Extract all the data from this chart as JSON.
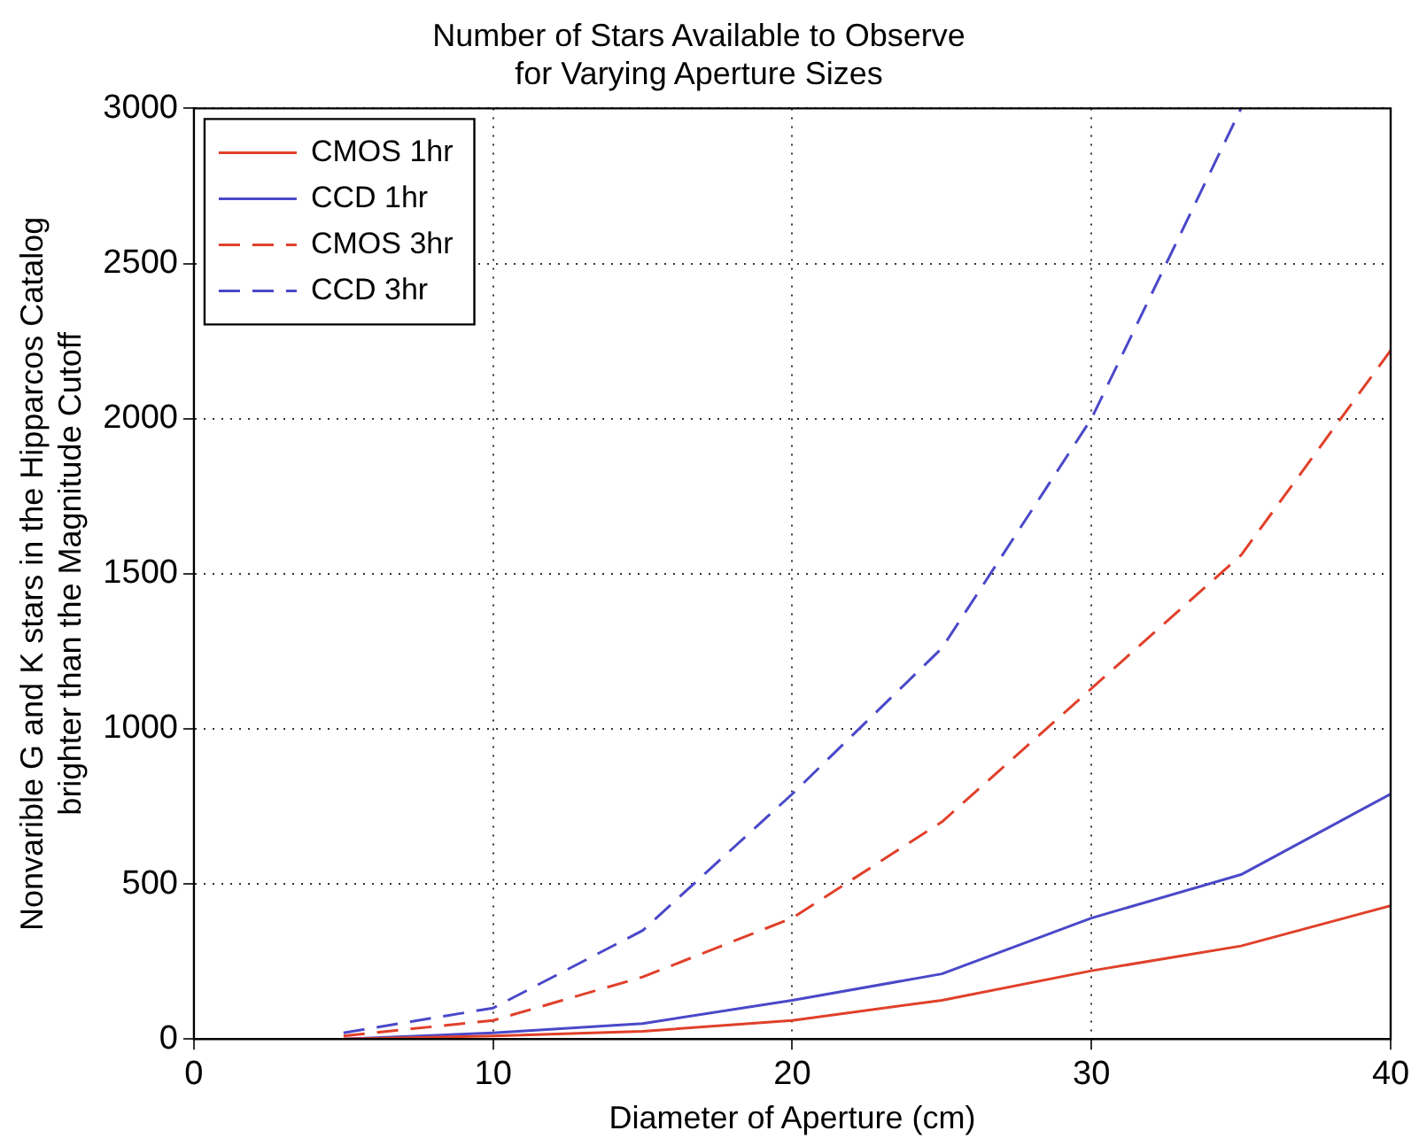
{
  "chart_data": {
    "type": "line",
    "title": "Number of Stars Available to Observe\nfor Varying Aperture Sizes",
    "xlabel": "Diameter of Aperture (cm)",
    "ylabel": "Nonvarible G and K stars in the Hipparcos Catalog\nbrighter than the Magnitude Cutoff",
    "x": [
      5,
      10,
      15,
      20,
      25,
      30,
      35,
      40
    ],
    "series": [
      {
        "name": "CMOS 1hr",
        "color": "#e0402a",
        "line_style": "solid",
        "values": [
          0,
          10,
          25,
          60,
          125,
          220,
          300,
          430
        ]
      },
      {
        "name": "CCD 1hr",
        "color": "#4a48c8",
        "line_style": "solid",
        "values": [
          0,
          20,
          50,
          125,
          210,
          390,
          530,
          790
        ]
      },
      {
        "name": "CMOS 3hr",
        "color": "#e0402a",
        "line_style": "dashed",
        "values": [
          10,
          60,
          200,
          390,
          700,
          1130,
          1560,
          2220
        ]
      },
      {
        "name": "CCD 3hr",
        "color": "#4a48c8",
        "line_style": "dashed",
        "values": [
          20,
          100,
          350,
          790,
          1260,
          2000,
          3000,
          null
        ]
      }
    ],
    "xlim": [
      0,
      40
    ],
    "xticks": [
      0,
      10,
      20,
      30,
      40
    ],
    "ylim": [
      0,
      3000
    ],
    "yticks": [
      0,
      500,
      1000,
      1500,
      2000,
      2500,
      3000
    ],
    "grid": true,
    "legend": "top left",
    "marker": "none"
  }
}
